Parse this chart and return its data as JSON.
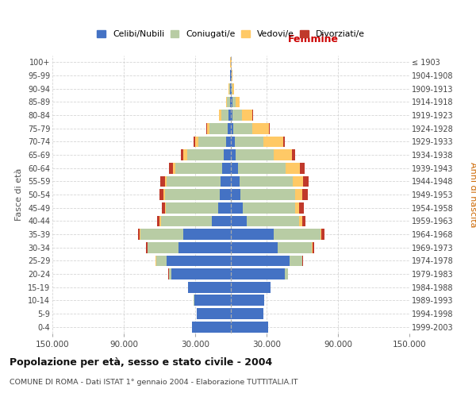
{
  "age_groups": [
    "0-4",
    "5-9",
    "10-14",
    "15-19",
    "20-24",
    "25-29",
    "30-34",
    "35-39",
    "40-44",
    "45-49",
    "50-54",
    "55-59",
    "60-64",
    "65-69",
    "70-74",
    "75-79",
    "80-84",
    "85-89",
    "90-94",
    "95-99",
    "100+"
  ],
  "birth_years": [
    "1999-2003",
    "1994-1998",
    "1989-1993",
    "1984-1988",
    "1979-1983",
    "1974-1978",
    "1969-1973",
    "1964-1968",
    "1959-1963",
    "1954-1958",
    "1949-1953",
    "1944-1948",
    "1939-1943",
    "1934-1938",
    "1929-1933",
    "1924-1928",
    "1919-1923",
    "1914-1918",
    "1909-1913",
    "1904-1908",
    "≤ 1903"
  ],
  "males_celibi": [
    33000,
    29000,
    31000,
    36000,
    50000,
    54000,
    44000,
    40000,
    16000,
    10500,
    9500,
    9000,
    7500,
    6000,
    4200,
    2800,
    1800,
    1000,
    600,
    350,
    200
  ],
  "males_coniugati": [
    0,
    0,
    50,
    200,
    2200,
    9000,
    26000,
    36000,
    43000,
    44000,
    46000,
    45000,
    39000,
    31000,
    23000,
    15000,
    6500,
    2200,
    800,
    300,
    100
  ],
  "males_vedovi": [
    0,
    0,
    0,
    0,
    60,
    120,
    120,
    350,
    700,
    900,
    1300,
    1600,
    2200,
    2700,
    2800,
    2200,
    1400,
    700,
    350,
    120,
    60
  ],
  "males_divorziati": [
    0,
    0,
    0,
    0,
    120,
    350,
    1100,
    1700,
    2200,
    2700,
    3500,
    3800,
    3200,
    2000,
    1200,
    700,
    400,
    200,
    80,
    30,
    10
  ],
  "females_nubili": [
    31000,
    27000,
    28000,
    33000,
    45000,
    49000,
    39000,
    36000,
    13500,
    9800,
    8200,
    7200,
    5800,
    4200,
    3200,
    2200,
    1600,
    1000,
    700,
    350,
    200
  ],
  "females_coniugate": [
    0,
    0,
    60,
    350,
    2700,
    11000,
    29000,
    39000,
    44000,
    44000,
    46000,
    45000,
    40000,
    32000,
    24000,
    16000,
    7500,
    2800,
    900,
    350,
    100
  ],
  "females_vedove": [
    0,
    0,
    0,
    0,
    120,
    220,
    450,
    1100,
    2200,
    3800,
    6000,
    8500,
    12000,
    15000,
    16500,
    13500,
    9000,
    3500,
    1200,
    400,
    120
  ],
  "females_divorziate": [
    0,
    0,
    0,
    0,
    170,
    550,
    1700,
    2400,
    3000,
    3800,
    4500,
    4800,
    4000,
    2700,
    1700,
    900,
    450,
    220,
    90,
    30,
    10
  ],
  "color_celibi": "#4472c4",
  "color_coniugati": "#b8cca4",
  "color_vedovi": "#ffc966",
  "color_divorziati": "#c0392b",
  "xlim": 150000,
  "xtick_positions": [
    -150000,
    -90000,
    -30000,
    30000,
    90000,
    150000
  ],
  "xtick_labels": [
    "150.000",
    "90.000",
    "30.000",
    "30.000",
    "90.000",
    "150.000"
  ],
  "legend_labels": [
    "Celibi/Nubili",
    "Coniugati/e",
    "Vedovi/e",
    "Divorziati/e"
  ],
  "label_femmine": "Femmine",
  "ylabel_left": "Fasce di età",
  "ylabel_right": "Anni di nascita",
  "title": "Popolazione per età, sesso e stato civile - 2004",
  "subtitle": "COMUNE DI ROMA - Dati ISTAT 1° gennaio 2004 - Elaborazione TUTTITALIA.IT",
  "bg_color": "#ffffff",
  "grid_color": "#cccccc",
  "center_line_color": "#aaaaaa"
}
